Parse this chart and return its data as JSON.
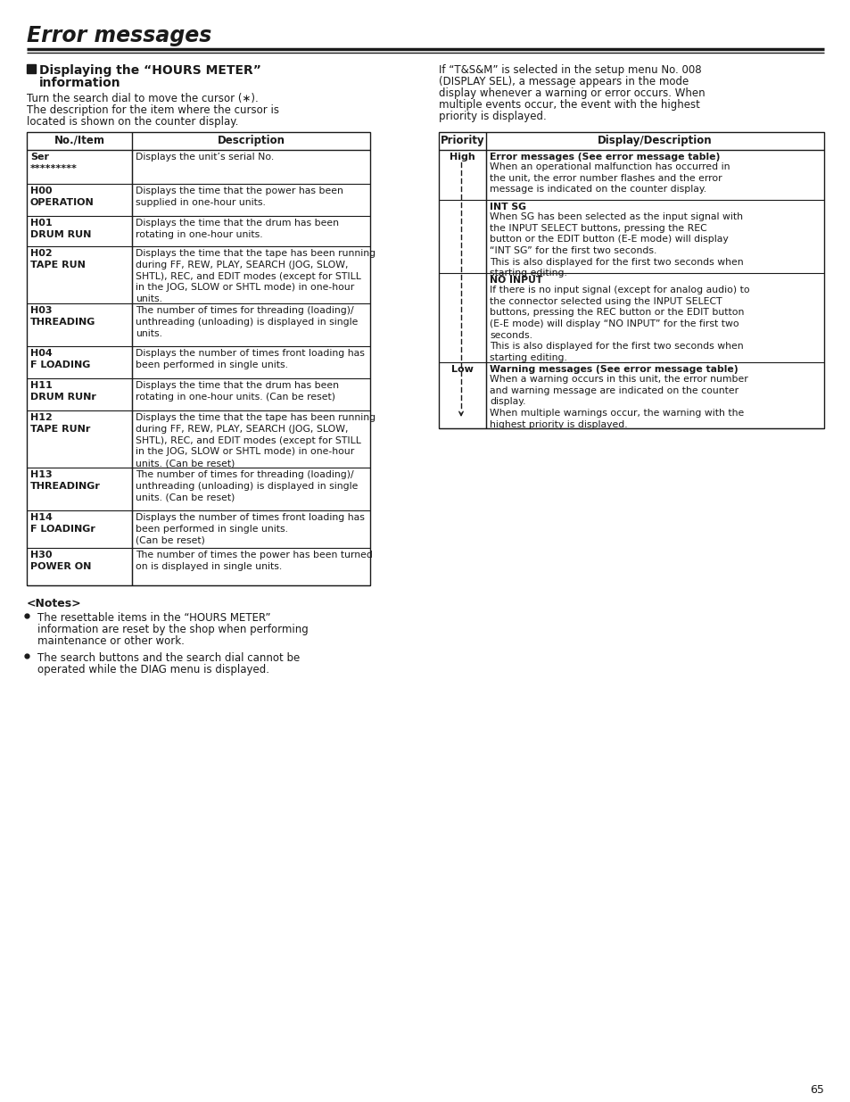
{
  "title": "Error messages",
  "page_number": "65",
  "section_title_line1": "Displaying the “HOURS METER”",
  "section_title_line2": "information",
  "intro_lines": [
    "Turn the search dial to move the cursor (∗).",
    "The description for the item where the cursor is",
    "located is shown on the counter display."
  ],
  "right_intro_lines": [
    "If “T&S&M” is selected in the setup menu No. 008",
    "(DISPLAY SEL), a message appears in the mode",
    "display whenever a warning or error occurs. When",
    "multiple events occur, the event with the highest",
    "priority is displayed."
  ],
  "left_table_col1": "No./Item",
  "left_table_col2": "Description",
  "left_rows": [
    {
      "item1": "Ser",
      "item2": "*********",
      "desc": "Displays the unit’s serial No.",
      "rh": 38
    },
    {
      "item1": "H00",
      "item2": "OPERATION",
      "desc": "Displays the time that the power has been\nsupplied in one-hour units.",
      "rh": 36
    },
    {
      "item1": "H01",
      "item2": "DRUM RUN",
      "desc": "Displays the time that the drum has been\nrotating in one-hour units.",
      "rh": 34
    },
    {
      "item1": "H02",
      "item2": "TAPE RUN",
      "desc": "Displays the time that the tape has been running\nduring FF, REW, PLAY, SEARCH (JOG, SLOW,\nSHTL), REC, and EDIT modes (except for STILL\nin the JOG, SLOW or SHTL mode) in one-hour\nunits.",
      "rh": 64
    },
    {
      "item1": "H03",
      "item2": "THREADING",
      "desc": "The number of times for threading (loading)/\nunthreading (unloading) is displayed in single\nunits.",
      "rh": 48
    },
    {
      "item1": "H04",
      "item2": "F LOADING",
      "desc": "Displays the number of times front loading has\nbeen performed in single units.",
      "rh": 36
    },
    {
      "item1": "H11",
      "item2": "DRUM RUNr",
      "desc": "Displays the time that the drum has been\nrotating in one-hour units. (Can be reset)",
      "rh": 36
    },
    {
      "item1": "H12",
      "item2": "TAPE RUNr",
      "desc": "Displays the time that the tape has been running\nduring FF, REW, PLAY, SEARCH (JOG, SLOW,\nSHTL), REC, and EDIT modes (except for STILL\nin the JOG, SLOW or SHTL mode) in one-hour\nunits. (Can be reset)",
      "rh": 64
    },
    {
      "item1": "H13",
      "item2": "THREADINGr",
      "desc": "The number of times for threading (loading)/\nunthreading (unloading) is displayed in single\nunits. (Can be reset)",
      "rh": 48
    },
    {
      "item1": "H14",
      "item2": "F LOADINGr",
      "desc": "Displays the number of times front loading has\nbeen performed in single units.\n(Can be reset)",
      "rh": 42
    },
    {
      "item1": "H30",
      "item2": "POWER ON",
      "desc": "The number of times the power has been turned\non is displayed in single units.",
      "rh": 42
    }
  ],
  "right_table_col1": "Priority",
  "right_table_col2": "Display/Description",
  "right_rows": [
    {
      "priority": "High",
      "title": "Error messages (See error message table)",
      "body": "When an operational malfunction has occurred in\nthe unit, the error number flashes and the error\nmessage is indicated on the counter display.",
      "rh": 56
    },
    {
      "priority": "",
      "title": "INT SG",
      "body": "When SG has been selected as the input signal with\nthe INPUT SELECT buttons, pressing the REC\nbutton or the EDIT button (E-E mode) will display\n“INT SG” for the first two seconds.\nThis is also displayed for the first two seconds when\nstarting editing.",
      "rh": 82
    },
    {
      "priority": "",
      "title": "NO INPUT",
      "body": "If there is no input signal (except for analog audio) to\nthe connector selected using the INPUT SELECT\nbuttons, pressing the REC button or the EDIT button\n(E-E mode) will display “NO INPUT” for the first two\nseconds.\nThis is also displayed for the first two seconds when\nstarting editing.",
      "rh": 100
    },
    {
      "priority": "Low",
      "title": "Warning messages (See error message table)",
      "body": "When a warning occurs in this unit, the error number\nand warning message are indicated on the counter\ndisplay.\nWhen multiple warnings occur, the warning with the\nhighest priority is displayed.",
      "rh": 74
    }
  ],
  "notes_header": "<Notes>",
  "notes": [
    "The resettable items in the “HOURS METER”\ninformation are reset by the shop when performing\nmaintenance or other work.",
    "The search buttons and the search dial cannot be\noperated while the DIAG menu is displayed."
  ]
}
